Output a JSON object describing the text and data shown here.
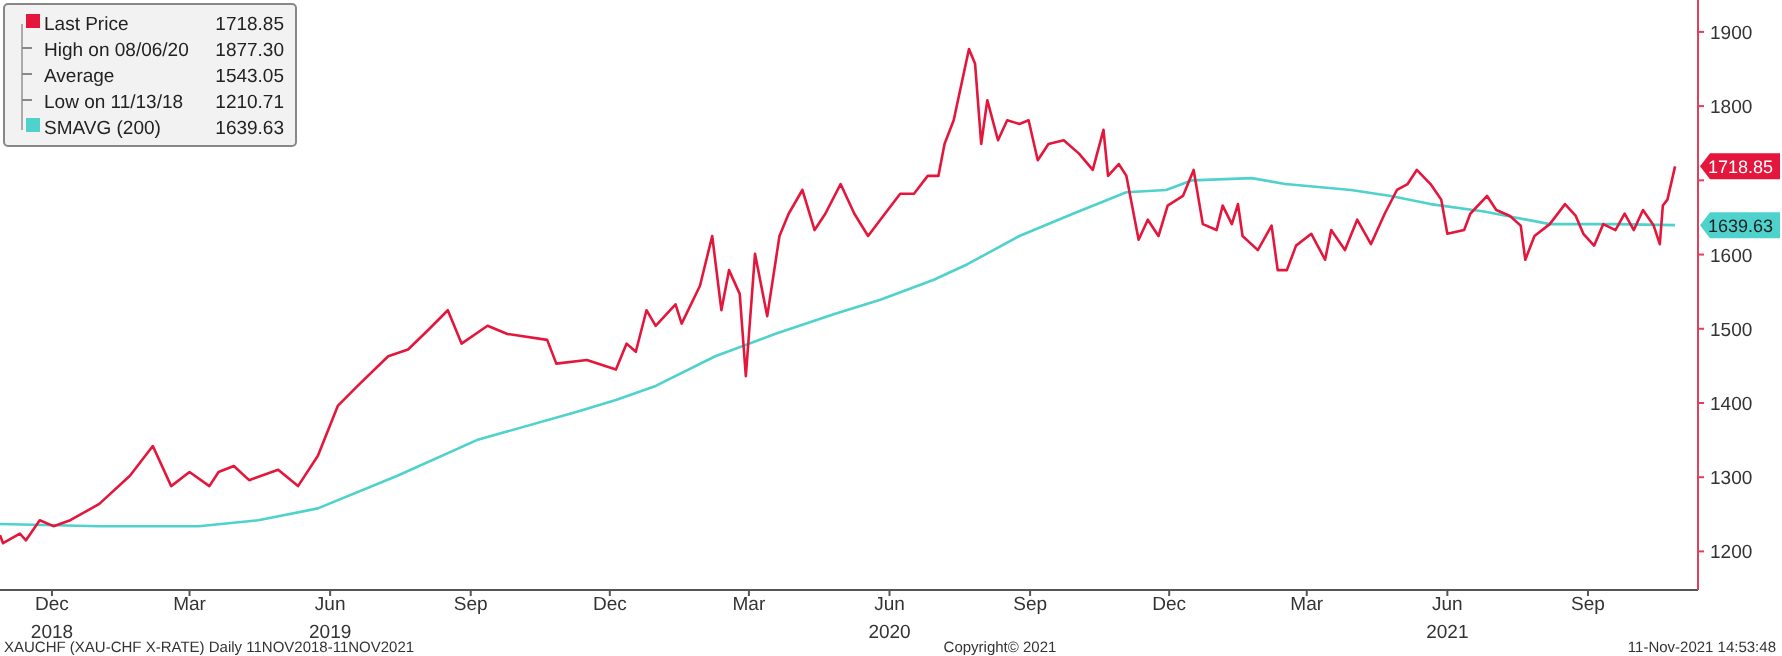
{
  "chart_data": {
    "type": "line",
    "xlim": [
      "2018-11-11",
      "2021-11-26"
    ],
    "xticks": [
      {
        "value": "2018-12-15",
        "label": "Dec\n2018"
      },
      {
        "value": "2019-03-15",
        "label": "Mar"
      },
      {
        "value": "2019-06-15",
        "label": "Jun\n2019"
      },
      {
        "value": "2019-09-15",
        "label": "Sep"
      },
      {
        "value": "2019-12-15",
        "label": "Dec"
      },
      {
        "value": "2020-03-15",
        "label": "Mar"
      },
      {
        "value": "2020-06-15",
        "label": "Jun\n2020"
      },
      {
        "value": "2020-09-15",
        "label": "Sep"
      },
      {
        "value": "2020-12-15",
        "label": "Dec"
      },
      {
        "value": "2021-03-15",
        "label": "Mar"
      },
      {
        "value": "2021-06-15",
        "label": "Jun\n2021"
      },
      {
        "value": "2021-09-15",
        "label": "Sep"
      }
    ],
    "ylim": [
      1148,
      1943
    ],
    "yticks": [
      1200,
      1300,
      1400,
      1500,
      1600,
      {
        "value": 1700,
        "label": null
      },
      1800,
      1900
    ],
    "legend": "top left",
    "series": [
      {
        "name": "Last Price",
        "color": "#e4163c",
        "x": [
          "2018-11-11",
          "2018-11-13",
          "2018-11-24",
          "2018-11-28",
          "2018-12-07",
          "2018-12-16",
          "2018-12-27",
          "2019-01-15",
          "2019-02-04",
          "2019-02-19",
          "2019-03-03",
          "2019-03-15",
          "2019-03-28",
          "2019-04-03",
          "2019-04-13",
          "2019-04-23",
          "2019-05-12",
          "2019-05-25",
          "2019-06-07",
          "2019-06-20",
          "2019-07-03",
          "2019-07-23",
          "2019-08-05",
          "2019-08-18",
          "2019-08-31",
          "2019-09-09",
          "2019-09-26",
          "2019-10-09",
          "2019-11-04",
          "2019-11-10",
          "2019-11-30",
          "2019-12-19",
          "2019-12-26",
          "2020-01-01",
          "2020-01-08",
          "2020-01-14",
          "2020-01-27",
          "2020-01-31",
          "2020-02-12",
          "2020-02-20",
          "2020-02-26",
          "2020-03-02",
          "2020-03-09",
          "2020-03-13",
          "2020-03-19",
          "2020-03-27",
          "2020-04-04",
          "2020-04-10",
          "2020-04-19",
          "2020-04-27",
          "2020-05-04",
          "2020-05-14",
          "2020-05-23",
          "2020-06-01",
          "2020-06-09",
          "2020-06-22",
          "2020-07-01",
          "2020-07-10",
          "2020-07-17",
          "2020-07-21",
          "2020-07-27",
          "2020-08-06",
          "2020-08-10",
          "2020-08-14",
          "2020-08-18",
          "2020-08-25",
          "2020-08-31",
          "2020-09-08",
          "2020-09-14",
          "2020-09-20",
          "2020-09-27",
          "2020-10-07",
          "2020-10-17",
          "2020-10-26",
          "2020-11-02",
          "2020-11-05",
          "2020-11-12",
          "2020-11-17",
          "2020-11-25",
          "2020-12-01",
          "2020-12-08",
          "2020-12-14",
          "2020-12-24",
          "2020-12-31",
          "2021-01-06",
          "2021-01-15",
          "2021-01-19",
          "2021-01-25",
          "2021-01-29",
          "2021-02-01",
          "2021-02-11",
          "2021-02-20",
          "2021-02-24",
          "2021-03-02",
          "2021-03-08",
          "2021-03-18",
          "2021-03-27",
          "2021-03-31",
          "2021-04-09",
          "2021-04-17",
          "2021-04-26",
          "2021-05-05",
          "2021-05-13",
          "2021-05-20",
          "2021-05-26",
          "2021-06-04",
          "2021-06-11",
          "2021-06-15",
          "2021-06-26",
          "2021-06-30",
          "2021-07-11",
          "2021-07-17",
          "2021-07-26",
          "2021-08-02",
          "2021-08-05",
          "2021-08-11",
          "2021-08-21",
          "2021-08-31",
          "2021-09-07",
          "2021-09-12",
          "2021-09-19",
          "2021-09-25",
          "2021-10-03",
          "2021-10-09",
          "2021-10-15",
          "2021-10-21",
          "2021-10-28",
          "2021-11-01",
          "2021-11-03",
          "2021-11-06",
          "2021-11-11"
        ],
        "values": [
          1222,
          1211,
          1224,
          1215,
          1242,
          1234,
          1242,
          1264,
          1302,
          1342,
          1288,
          1307,
          1288,
          1307,
          1315,
          1296,
          1310,
          1288,
          1329,
          1396,
          1423,
          1463,
          1472,
          1498,
          1525,
          1480,
          1504,
          1493,
          1485,
          1453,
          1458,
          1445,
          1480,
          1469,
          1525,
          1504,
          1533,
          1507,
          1558,
          1625,
          1525,
          1579,
          1547,
          1436,
          1601,
          1517,
          1625,
          1655,
          1687,
          1633,
          1655,
          1695,
          1655,
          1625,
          1647,
          1682,
          1682,
          1706,
          1706,
          1749,
          1781,
          1877,
          1857,
          1749,
          1808,
          1754,
          1781,
          1776,
          1781,
          1727,
          1749,
          1754,
          1736,
          1714,
          1768,
          1706,
          1722,
          1706,
          1620,
          1647,
          1625,
          1666,
          1679,
          1714,
          1641,
          1633,
          1666,
          1641,
          1668,
          1625,
          1606,
          1639,
          1579,
          1579,
          1612,
          1628,
          1593,
          1633,
          1606,
          1647,
          1614,
          1655,
          1687,
          1695,
          1714,
          1695,
          1674,
          1628,
          1633,
          1655,
          1679,
          1660,
          1652,
          1639,
          1593,
          1625,
          1641,
          1668,
          1652,
          1628,
          1612,
          1641,
          1633,
          1655,
          1633,
          1660,
          1639,
          1614,
          1666,
          1674,
          1718.85
        ]
      },
      {
        "name": "SMAVG (200)",
        "color": "#4fd1cc",
        "x": [
          "2018-11-11",
          "2019-01-15",
          "2019-03-21",
          "2019-04-29",
          "2019-06-07",
          "2019-07-29",
          "2019-09-19",
          "2019-11-23",
          "2019-12-19",
          "2020-01-14",
          "2020-02-22",
          "2020-04-01",
          "2020-05-10",
          "2020-06-09",
          "2020-07-14",
          "2020-08-05",
          "2020-09-08",
          "2020-10-13",
          "2020-11-17",
          "2020-12-13",
          "2020-12-30",
          "2021-02-07",
          "2021-03-01",
          "2021-04-13",
          "2021-05-09",
          "2021-06-04",
          "2021-07-09",
          "2021-08-21",
          "2021-10-03",
          "2021-11-11"
        ],
        "values": [
          1237,
          1234,
          1234,
          1242,
          1258,
          1302,
          1350,
          1388,
          1404,
          1423,
          1463,
          1493,
          1520,
          1539,
          1566,
          1587,
          1625,
          1655,
          1684,
          1687,
          1700,
          1703,
          1695,
          1687,
          1679,
          1668,
          1658,
          1641,
          1641,
          1639.63
        ]
      }
    ],
    "annotations": [
      {
        "text": "1718.85",
        "x": "2021-11-11",
        "y": 1718.85
      },
      {
        "text": "1639.63",
        "x": "2021-11-11",
        "y": 1639.63
      },
      "High on 08/06/20 1877.30",
      "Average 1543.05",
      "Low on 11/13/18 1210.71",
      "XAUCHF (XAU-CHF X-RATE)  Daily 11NOV2018-11NOV2021",
      "Copyright© 2021",
      "11-Nov-2021 14:53:48"
    ]
  }
}
